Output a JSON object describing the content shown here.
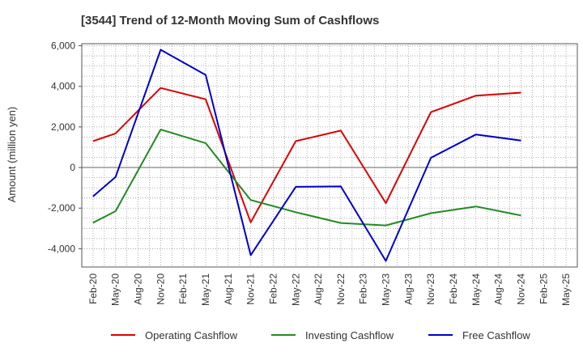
{
  "chart_data": {
    "type": "line",
    "title": "[3544]  Trend of 12-Month Moving Sum of Cashflows",
    "ylabel": "Amount (million yen)",
    "xlabel": "",
    "ylim": [
      -4900,
      6100
    ],
    "yticks": [
      -4000,
      -2000,
      0,
      2000,
      4000,
      6000
    ],
    "ytick_labels": [
      "-4,000",
      "-2,000",
      "0",
      "2,000",
      "4,000",
      "6,000"
    ],
    "categories": [
      "Feb-20",
      "May-20",
      "Aug-20",
      "Nov-20",
      "Feb-21",
      "May-21",
      "Aug-21",
      "Nov-21",
      "Feb-22",
      "May-22",
      "Aug-22",
      "Nov-22",
      "Feb-23",
      "May-23",
      "Aug-23",
      "Nov-23",
      "Feb-24",
      "May-24",
      "Aug-24",
      "Nov-24",
      "Feb-25",
      "May-25"
    ],
    "grid": true,
    "legend_position": "bottom",
    "series": [
      {
        "name": "Operating Cashflow",
        "color": "#dd0000",
        "values": [
          1300,
          1680,
          null,
          3920,
          null,
          3360,
          null,
          -2700,
          null,
          1300,
          null,
          1820,
          null,
          -1750,
          null,
          2730,
          null,
          3540,
          null,
          3690,
          null,
          null
        ]
      },
      {
        "name": "Investing Cashflow",
        "color": "#228b22",
        "values": [
          -2720,
          -2150,
          null,
          1870,
          null,
          1200,
          null,
          -1600,
          null,
          -2200,
          null,
          -2730,
          null,
          -2850,
          null,
          -2250,
          null,
          -1920,
          null,
          -2360,
          null,
          null
        ]
      },
      {
        "name": "Free Cashflow",
        "color": "#0000cc",
        "values": [
          -1420,
          -470,
          null,
          5800,
          null,
          4560,
          null,
          -4320,
          null,
          -950,
          null,
          -930,
          null,
          -4600,
          null,
          480,
          null,
          1630,
          null,
          1330,
          null,
          null
        ]
      }
    ]
  }
}
